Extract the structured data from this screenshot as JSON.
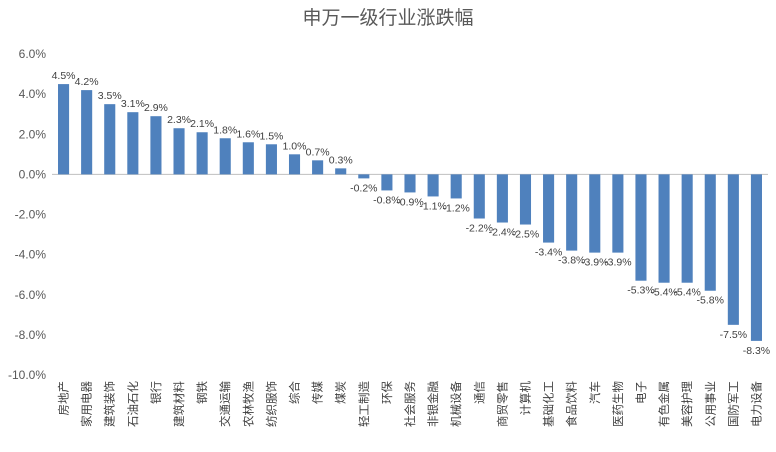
{
  "chart_data": {
    "type": "bar",
    "title": "申万一级行业涨跌幅",
    "xlabel": "",
    "ylabel": "",
    "ylim": [
      -10,
      6
    ],
    "ytick_step": 2,
    "grid": false,
    "legend": "none",
    "bar_color": "#4f81bd",
    "categories": [
      "房地产",
      "家用电器",
      "建筑装饰",
      "石油石化",
      "银行",
      "建筑材料",
      "钢铁",
      "交通运输",
      "农林牧渔",
      "纺织服饰",
      "综合",
      "传媒",
      "煤炭",
      "轻工制造",
      "环保",
      "社会服务",
      "非银金融",
      "机械设备",
      "通信",
      "商贸零售",
      "计算机",
      "基础化工",
      "食品饮料",
      "汽车",
      "医药生物",
      "电子",
      "有色金属",
      "美容护理",
      "公用事业",
      "国防军工",
      "电力设备"
    ],
    "values": [
      4.5,
      4.2,
      3.5,
      3.1,
      2.9,
      2.3,
      2.1,
      1.8,
      1.6,
      1.5,
      1.0,
      0.7,
      0.3,
      -0.2,
      -0.8,
      -0.9,
      -1.1,
      -1.2,
      -2.2,
      -2.4,
      -2.5,
      -3.4,
      -3.8,
      -3.9,
      -3.9,
      -5.3,
      -5.4,
      -5.4,
      -5.8,
      -7.5,
      -8.3
    ],
    "value_format": "percent_1dp"
  }
}
